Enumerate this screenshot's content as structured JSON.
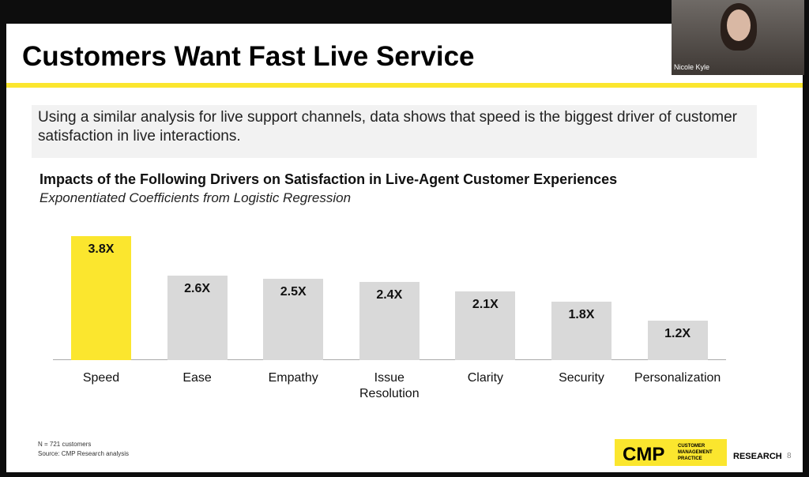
{
  "video": {
    "participant": "Nicole Kyle"
  },
  "slide": {
    "title": "Customers Want Fast Live Service",
    "intro": "Using a similar analysis for live support channels, data shows that speed is the biggest driver of customer satisfaction in live interactions.",
    "footnotes": [
      "N = 721 customers",
      "Source: CMP Research analysis"
    ],
    "logo": {
      "mark": "CMP",
      "name": "CUSTOMER MANAGEMENT PRACTICE",
      "division": "RESEARCH"
    },
    "page_number": "8"
  },
  "chart_data": {
    "type": "bar",
    "title": "Impacts of the Following Drivers on Satisfaction in Live-Agent Customer Experiences",
    "subtitle": "Exponentiated Coefficients from Logistic Regression",
    "categories": [
      "Speed",
      "Ease",
      "Empathy",
      "Issue Resolution",
      "Clarity",
      "Security",
      "Personalization"
    ],
    "values": [
      3.8,
      2.6,
      2.5,
      2.4,
      2.1,
      1.8,
      1.2
    ],
    "value_labels": [
      "3.8X",
      "2.6X",
      "2.5X",
      "2.4X",
      "2.1X",
      "1.8X",
      "1.2X"
    ],
    "colors": [
      "#fbe62e",
      "#d9d9d9",
      "#d9d9d9",
      "#d9d9d9",
      "#d9d9d9",
      "#d9d9d9",
      "#d9d9d9"
    ]
  }
}
